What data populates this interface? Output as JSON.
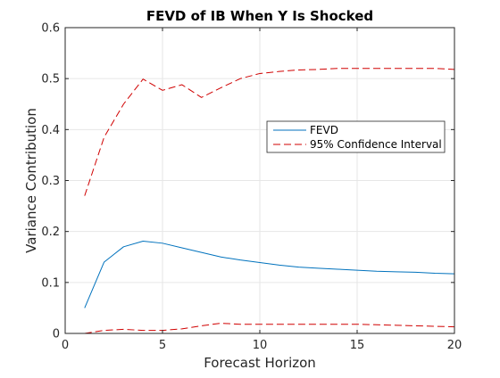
{
  "chart_data": {
    "type": "line",
    "title": "FEVD of IB When Y Is Shocked",
    "xlabel": "Forecast Horizon",
    "ylabel": "Variance Contribution",
    "xlim": [
      0,
      20
    ],
    "ylim": [
      0,
      0.6
    ],
    "xticks": [
      0,
      5,
      10,
      15,
      20
    ],
    "xtick_labels": [
      "0",
      "5",
      "10",
      "15",
      "20"
    ],
    "yticks": [
      0,
      0.1,
      0.2,
      0.3,
      0.4,
      0.5,
      0.6
    ],
    "ytick_labels": [
      "0",
      "0.1",
      "0.2",
      "0.3",
      "0.4",
      "0.5",
      "0.6"
    ],
    "grid": true,
    "legend_position": "center-right",
    "x": [
      1,
      2,
      3,
      4,
      5,
      6,
      7,
      8,
      9,
      10,
      11,
      12,
      13,
      14,
      15,
      16,
      17,
      18,
      19,
      20
    ],
    "series": [
      {
        "name": "FEVD",
        "style": "solid",
        "color": "#0072BD",
        "values": [
          0.05,
          0.14,
          0.17,
          0.181,
          0.177,
          0.168,
          0.159,
          0.15,
          0.144,
          0.139,
          0.134,
          0.13,
          0.128,
          0.126,
          0.124,
          0.122,
          0.121,
          0.12,
          0.118,
          0.117
        ]
      },
      {
        "name": "95% Confidence Interval",
        "style": "dashed",
        "color": "#D00000",
        "values": [
          0.27,
          0.385,
          0.45,
          0.499,
          0.477,
          0.488,
          0.463,
          0.482,
          0.5,
          0.51,
          0.514,
          0.517,
          0.518,
          0.52,
          0.52,
          0.52,
          0.52,
          0.52,
          0.52,
          0.518
        ]
      },
      {
        "name": "",
        "style": "dashed",
        "color": "#D00000",
        "values": [
          0.0,
          0.006,
          0.008,
          0.006,
          0.006,
          0.009,
          0.015,
          0.02,
          0.018,
          0.018,
          0.018,
          0.018,
          0.018,
          0.018,
          0.018,
          0.017,
          0.016,
          0.015,
          0.014,
          0.013
        ]
      }
    ]
  }
}
